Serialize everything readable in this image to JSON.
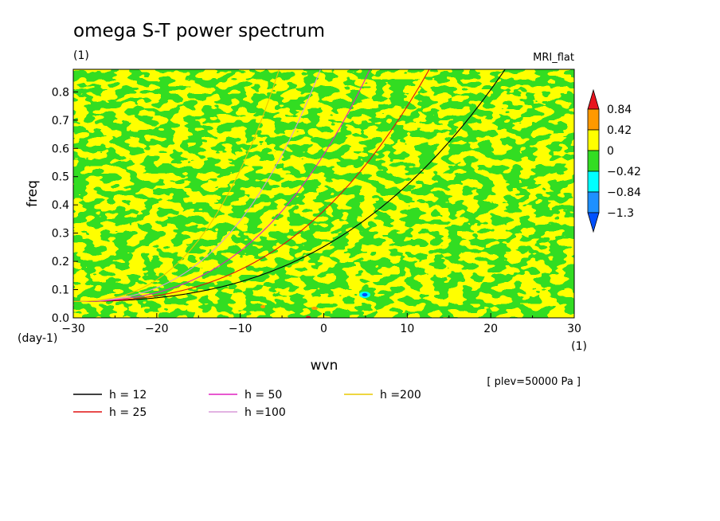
{
  "chart_data": {
    "type": "contour-with-lines",
    "title": "omega S-T power spectrum",
    "title_unit": "(1)",
    "model_name": "MRI_flat",
    "xlabel": "wvn",
    "x_unit": "(1)",
    "ylabel": "freq",
    "y_unit": "(day-1)",
    "xlim": [
      -30,
      30
    ],
    "ylim": [
      0,
      0.88
    ],
    "xticks": [
      "−30",
      "−20",
      "−10",
      "0",
      "10",
      "20",
      "30"
    ],
    "xtick_values": [
      -30,
      -20,
      -10,
      0,
      10,
      20,
      30
    ],
    "yticks": [
      "0.0",
      "0.1",
      "0.2",
      "0.3",
      "0.4",
      "0.5",
      "0.6",
      "0.7",
      "0.8"
    ],
    "ytick_values": [
      0,
      0.1,
      0.2,
      0.3,
      0.4,
      0.5,
      0.6,
      0.7,
      0.8
    ],
    "annotation": "[ plev=50000 Pa ]",
    "colorbar": {
      "labels": [
        "0.84",
        "0.42",
        "0",
        "−0.42",
        "−0.84",
        "−1.3"
      ],
      "colors": [
        "#e8141e",
        "#ff9900",
        "#ffff00",
        "#33dd22",
        "#00ffff",
        "#1e90ff",
        "#0050ff"
      ]
    },
    "series": [
      {
        "name": "h = 12",
        "color": "#000000",
        "h": 12
      },
      {
        "name": "h = 25",
        "color": "#e01010",
        "h": 25
      },
      {
        "name": "h = 50",
        "color": "#e020c0",
        "h": 50
      },
      {
        "name": "h =100",
        "color": "#d89ad8",
        "h": 100
      },
      {
        "name": "h =200",
        "color": "#e8c800",
        "h": 200
      }
    ]
  }
}
